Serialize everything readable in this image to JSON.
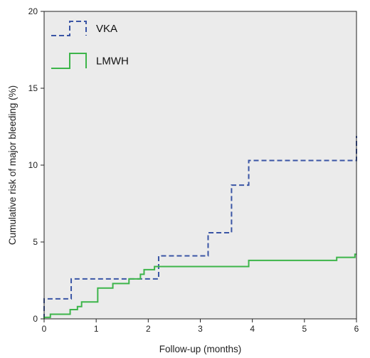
{
  "chart_data": {
    "type": "line",
    "subtype": "step (cumulative incidence)",
    "title": "",
    "xlabel": "Follow-up (months)",
    "ylabel": "Cumulative risk of major bleeding (%)",
    "xlim": [
      0,
      6
    ],
    "ylim": [
      0,
      20
    ],
    "xticks": [
      0,
      1,
      2,
      3,
      4,
      5,
      6
    ],
    "yticks": [
      0,
      5,
      10,
      15,
      20
    ],
    "grid": false,
    "background": "#ebebeb",
    "legend_position": "top-left",
    "series": [
      {
        "name": "VKA",
        "color": "#3a55a5",
        "line_style": "dashed",
        "points": [
          [
            0,
            0
          ],
          [
            0,
            1.3
          ],
          [
            0.52,
            1.3
          ],
          [
            0.52,
            2.6
          ],
          [
            2.2,
            2.6
          ],
          [
            2.2,
            4.1
          ],
          [
            3.15,
            4.1
          ],
          [
            3.15,
            5.6
          ],
          [
            3.6,
            5.6
          ],
          [
            3.6,
            8.7
          ],
          [
            3.93,
            8.7
          ],
          [
            3.93,
            10.3
          ],
          [
            6,
            10.3
          ],
          [
            6,
            11.9
          ]
        ]
      },
      {
        "name": "LMWH",
        "color": "#3db54a",
        "line_style": "solid",
        "points": [
          [
            0,
            0
          ],
          [
            0,
            0.1
          ],
          [
            0.12,
            0.1
          ],
          [
            0.12,
            0.3
          ],
          [
            0.5,
            0.3
          ],
          [
            0.5,
            0.6
          ],
          [
            0.64,
            0.6
          ],
          [
            0.64,
            0.8
          ],
          [
            0.72,
            0.8
          ],
          [
            0.72,
            1.1
          ],
          [
            1.03,
            1.1
          ],
          [
            1.03,
            2.0
          ],
          [
            1.32,
            2.0
          ],
          [
            1.32,
            2.3
          ],
          [
            1.63,
            2.3
          ],
          [
            1.63,
            2.6
          ],
          [
            1.85,
            2.6
          ],
          [
            1.85,
            2.9
          ],
          [
            1.92,
            2.9
          ],
          [
            1.92,
            3.2
          ],
          [
            2.12,
            3.2
          ],
          [
            2.12,
            3.4
          ],
          [
            3.93,
            3.4
          ],
          [
            3.93,
            3.8
          ],
          [
            5.62,
            3.8
          ],
          [
            5.62,
            4.0
          ],
          [
            5.97,
            4.0
          ],
          [
            5.97,
            4.2
          ],
          [
            6,
            4.2
          ]
        ]
      }
    ]
  }
}
